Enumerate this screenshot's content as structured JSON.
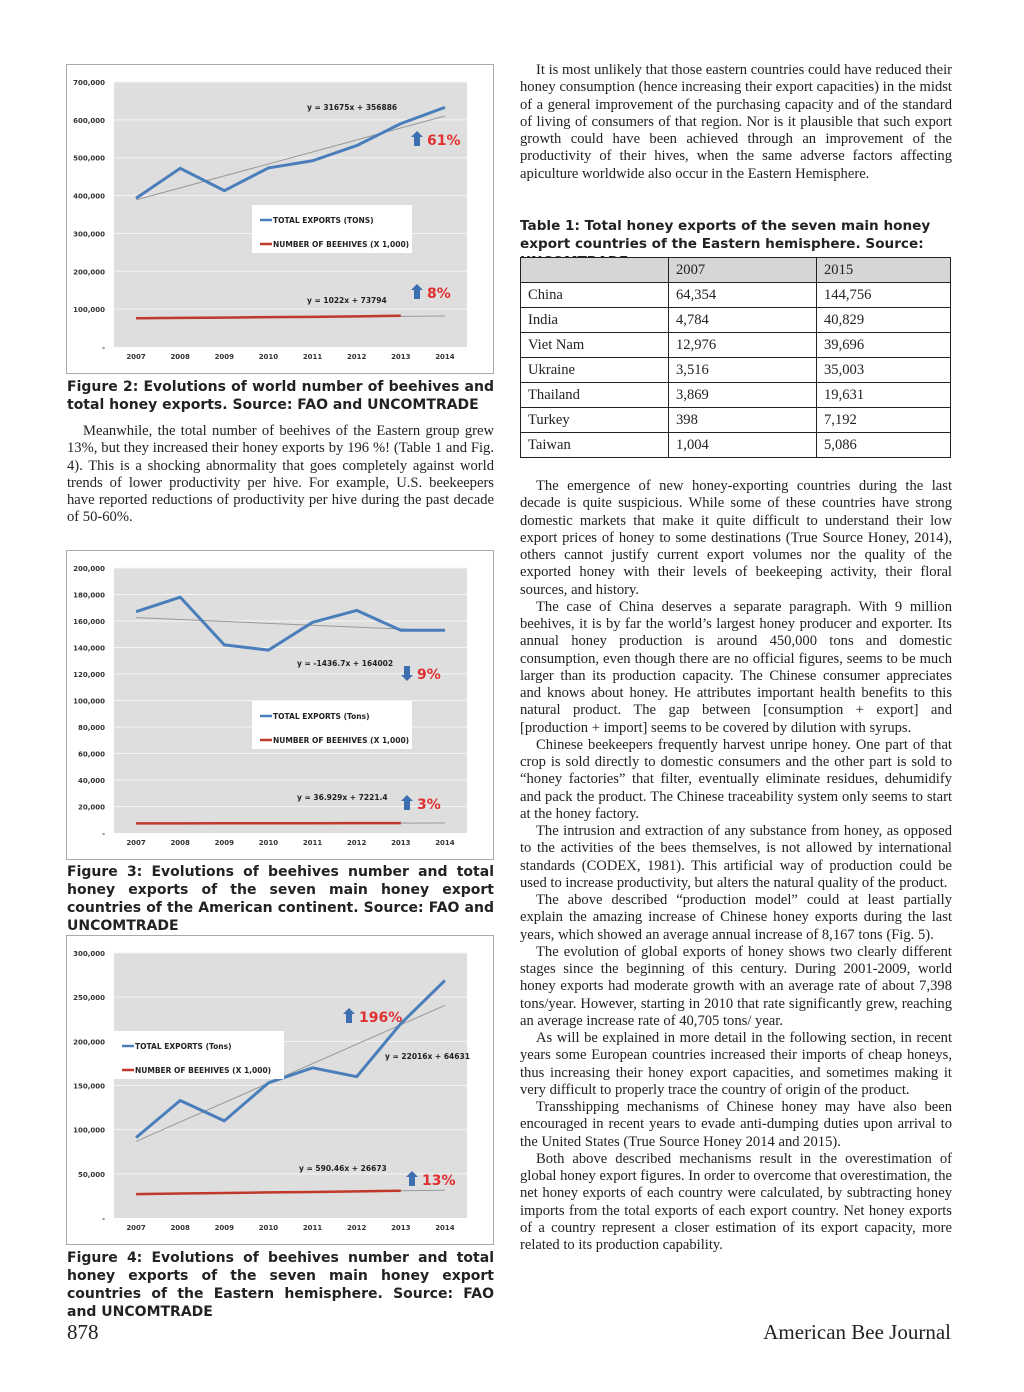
{
  "left_column": {
    "figure2_caption": "Figure 2: Evolutions of world number of beehives and total honey exports. Source: FAO and UNCOMTRADE",
    "paragraph1": "Meanwhile, the total number of beehives of the Eastern group grew 13%, but they increased their honey exports by 196 %! (Table 1 and Fig. 4). This is a shocking abnormality that goes completely against world trends of lower productivity per hive. For example, U.S. beekeepers have reported reductions of productivity per hive during the past decade of 50-60%.",
    "figure3_caption": "Figure 3: Evolutions of beehives number and total honey exports of the seven main honey export countries of the American continent. Source: FAO and UNCOMTRADE",
    "figure4_caption": "Figure 4: Evolutions of beehives number and total honey exports of the seven main honey export countries of the Eastern hemisphere. Source: FAO and UNCOMTRADE"
  },
  "right_column": {
    "intro_paragraph": "It is most unlikely that those eastern countries could have reduced their honey consumption (hence increasing their export capacities) in the midst of a general improvement of the purchasing capacity and of the standard of living of consumers of that region. Nor is it plausible that such export growth could have been achieved through an improvement of the productivity of their hives, when the same adverse factors affecting apiculture worldwide also occur in the Eastern Hemisphere.",
    "table_caption": "Table 1: Total honey exports of the seven main honey export countries of the Eastern hemisphere. Source: UNCOMTRADE",
    "table": {
      "headers": [
        "",
        "2007",
        "2015"
      ],
      "rows": [
        [
          "China",
          "64,354",
          "144,756"
        ],
        [
          "India",
          "4,784",
          "40,829"
        ],
        [
          "Viet Nam",
          "12,976",
          "39,696"
        ],
        [
          "Ukraine",
          "3,516",
          "35,003"
        ],
        [
          "Thailand",
          "3,869",
          "19,631"
        ],
        [
          "Turkey",
          "398",
          "7,192"
        ],
        [
          "Taiwan",
          "1,004",
          "5,086"
        ]
      ]
    },
    "paragraphs": [
      "The emergence of new honey-exporting countries during the last decade is quite suspicious. While some of these countries have strong domestic markets that make it quite difficult to understand their low export prices of honey to some destinations (True Source Honey, 2014), others cannot justify current export volumes nor the quality of the exported honey with their levels of beekeeping activity, their floral sources, and history.",
      "The case of China deserves a separate paragraph. With 9 million beehives, it is by far the world’s largest honey producer and exporter. Its annual honey production is around 450,000 tons and domestic consumption, even though there are no official figures, seems to be much larger than its production capacity. The Chinese consumer appreciates and knows about honey. He attributes important health benefits to this natural product. The gap between [consumption + export] and [production + import] seems to be covered by dilution with syrups.",
      "Chinese beekeepers frequently harvest unripe honey. One part of that crop is sold directly to domestic consumers and the other part is sold to “honey factories” that filter, eventually eliminate residues, dehumidify and pack the product. The Chinese traceability system only seems to start at the honey factory.",
      "The intrusion and extraction of any substance from honey, as opposed to the activities of the bees themselves, is not allowed by international standards (CODEX, 1981). This artificial way of production could be used to increase productivity, but alters the natural quality of the product.",
      "The above described “production model” could at least partially explain the amazing increase of Chinese honey exports during the last years, which showed an average annual increase of 8,167 tons (Fig. 5).",
      "The evolution of global exports of honey shows two clearly different stages since the beginning of this century. During 2001-2009, world honey exports had moderate growth with an average rate of about 7,398 tons/year. However, starting in 2010 that rate significantly grew, reaching an average increase rate of 40,705 tons/ year.",
      "As will be explained in more detail in the following section, in recent years some European countries increased their imports of cheap honeys, thus increasing their honey export capacities, and sometimes making it very difficult to properly trace the country of origin of the product.",
      "Transshipping mechanisms of Chinese honey may have also been encouraged in recent years to evade anti-dumping duties upon arrival to the United States (True Source Honey 2014 and 2015).",
      "Both above described mechanisms result in the overestimation of global honey export figures. In order to overcome that overestimation, the net honey exports of each country were calculated, by subtracting honey imports from the total exports of each export country. Net honey exports of a country represent a closer estimation of its export capacity, more related to its production capability."
    ]
  },
  "footer": {
    "page_number": "878",
    "journal": "American Bee Journal"
  },
  "colors": {
    "exports": "#4a7ebb",
    "beehives": "#c0392b",
    "percent": "#e03030",
    "arrow": "#3d6fb0",
    "plot_bg": "#dedede"
  },
  "chart_data": [
    {
      "type": "line",
      "figure": "Figure 2",
      "categories": [
        "2007",
        "2008",
        "2009",
        "2010",
        "2011",
        "2012",
        "2013",
        "2014"
      ],
      "ylim": [
        0,
        700000
      ],
      "yticks": [
        "-",
        "100,000",
        "200,000",
        "300,000",
        "400,000",
        "500,000",
        "600,000",
        "700,000"
      ],
      "series": [
        {
          "name": "TOTAL EXPORTS (TONS)",
          "values": [
            393000,
            472000,
            413000,
            473000,
            492000,
            532000,
            590000,
            633000
          ]
        },
        {
          "name": "NUMBER OF BEEHIVES (X 1,000)",
          "values": [
            76000,
            77000,
            77500,
            79000,
            79500,
            81000,
            82500,
            null
          ]
        }
      ],
      "trendlines": [
        {
          "slope": 31675,
          "intercept": 356886
        },
        {
          "slope": 1022,
          "intercept": 73794
        }
      ],
      "annotations": {
        "eq1": "y = 31675x + 356886",
        "eq2": "y = 1022x + 73794",
        "pct1": "61%",
        "pct2": "8%",
        "dir1": "up",
        "dir2": "up"
      },
      "legend": "center"
    },
    {
      "type": "line",
      "figure": "Figure 3",
      "categories": [
        "2007",
        "2008",
        "2009",
        "2010",
        "2011",
        "2012",
        "2013",
        "2014"
      ],
      "ylim": [
        0,
        200000
      ],
      "yticks": [
        "-",
        "20,000",
        "40,000",
        "60,000",
        "80,000",
        "100,000",
        "120,000",
        "140,000",
        "160,000",
        "180,000",
        "200,000"
      ],
      "series": [
        {
          "name": "TOTAL EXPORTS (Tons)",
          "values": [
            167000,
            178000,
            142000,
            138000,
            159000,
            168000,
            153000,
            153000
          ]
        },
        {
          "name": "NUMBER OF BEEHIVES (X 1,000)",
          "values": [
            7300,
            7300,
            7350,
            7350,
            7400,
            7450,
            7500,
            null
          ]
        }
      ],
      "trendlines": [
        {
          "slope": -1436.7,
          "intercept": 164002
        },
        {
          "slope": 36.929,
          "intercept": 7221.4
        }
      ],
      "annotations": {
        "eq1": "y = -1436.7x + 164002",
        "eq2": "y = 36.929x + 7221.4",
        "pct1": "9%",
        "pct2": "3%",
        "dir1": "down",
        "dir2": "up"
      },
      "legend": "center"
    },
    {
      "type": "line",
      "figure": "Figure 4",
      "categories": [
        "2007",
        "2008",
        "2009",
        "2010",
        "2011",
        "2012",
        "2013",
        "2014"
      ],
      "ylim": [
        0,
        300000
      ],
      "yticks": [
        "-",
        "50,000",
        "100,000",
        "150,000",
        "200,000",
        "250,000",
        "300,000"
      ],
      "series": [
        {
          "name": "TOTAL EXPORTS (Tons)",
          "values": [
            91000,
            133000,
            110000,
            153000,
            170000,
            160000,
            220000,
            269000
          ]
        },
        {
          "name": "NUMBER OF BEEHIVES (X 1,000)",
          "values": [
            27000,
            27700,
            28300,
            29000,
            29500,
            30200,
            30800,
            null
          ]
        }
      ],
      "trendlines": [
        {
          "slope": 22016,
          "intercept": 64631
        },
        {
          "slope": 590.46,
          "intercept": 26673
        }
      ],
      "annotations": {
        "eq1": "y = 22016x + 64631",
        "eq2": "y = 590.46x + 26673",
        "pct1": "196%",
        "pct2": "13%",
        "dir1": "up",
        "dir2": "up"
      },
      "legend": "top-left"
    }
  ]
}
